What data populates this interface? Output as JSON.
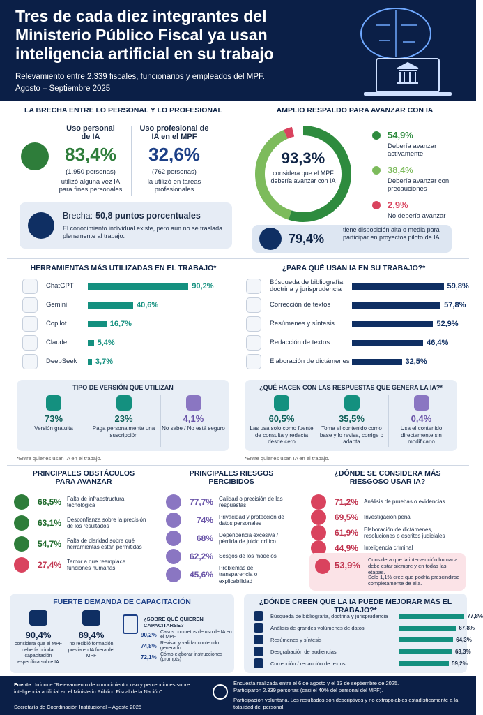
{
  "header": {
    "title": "Tres de cada diez integrantes del Ministerio Público Fiscal ya usan inteligencia artificial en su trabajo",
    "subtitle": "Relevamiento entre 2.339 fiscales, funcionarios y empleados del MPF.",
    "period": "Agosto – Septiembre 2025"
  },
  "gap": {
    "title": "LA BRECHA ENTRE LO PERSONAL Y LO PROFESIONAL",
    "personal": {
      "label": "Uso personal de IA",
      "value": "83,4%",
      "count": "(1.950 personas)",
      "note": "utilizó alguna vez IA para fines personales"
    },
    "professional": {
      "label": "Uso profesional de IA en el MPF",
      "value": "32,6%",
      "count": "(762 personas)",
      "note": "la utilizó en tareas profesionales"
    },
    "brecha": {
      "label": "Brecha:",
      "value": "50,8 puntos porcentuales",
      "note": "El conocimiento individual existe, pero aún no se traslada plenamente al trabajo."
    }
  },
  "support": {
    "title": "AMPLIO RESPALDO PARA AVANZAR CON IA",
    "center_value": "93,3%",
    "center_note": "considera que el MPF debería avanzar con IA",
    "segments": [
      {
        "value": 54.9,
        "label": "54,9%",
        "text": "Debería avanzar activamente",
        "color": "#2e8b3e"
      },
      {
        "value": 38.4,
        "label": "38,4%",
        "text": "Debería avanzar con precauciones",
        "color": "#7dbb5c"
      },
      {
        "value": 2.9,
        "label": "2,9%",
        "text": "No debería avanzar",
        "color": "#d9435e"
      }
    ],
    "pilot": {
      "value": "79,4%",
      "text": "tiene disposición alta o media para participar en proyectos piloto de IA."
    }
  },
  "tools": {
    "title": "HERRAMIENTAS MÁS UTILIZADAS EN EL TRABAJO*",
    "color": "#14907f",
    "items": [
      {
        "name": "ChatGPT",
        "value": 90.2,
        "label": "90,2%"
      },
      {
        "name": "Gemini",
        "value": 40.6,
        "label": "40,6%"
      },
      {
        "name": "Copilot",
        "value": 16.7,
        "label": "16,7%"
      },
      {
        "name": "Claude",
        "value": 5.4,
        "label": "5,4%"
      },
      {
        "name": "DeepSeek",
        "value": 3.7,
        "label": "3,7%"
      }
    ],
    "version": {
      "title": "TIPO DE VERSIÓN QUE UTILIZAN",
      "items": [
        {
          "value": "73%",
          "text": "Versión gratuita"
        },
        {
          "value": "23%",
          "text": "Paga personalmente una suscripción"
        },
        {
          "value": "4,1%",
          "text": "No sabe / No está seguro"
        }
      ]
    },
    "note": "*Entre quienes usan IA en el trabajo."
  },
  "uses": {
    "title": "¿PARA QUÉ USAN IA EN SU TRABAJO?*",
    "color": "#0f2f63",
    "items": [
      {
        "name": "Búsqueda de bibliografía, doctrina y jurisprudencia",
        "value": 59.8,
        "label": "59,8%"
      },
      {
        "name": "Corrección de textos",
        "value": 57.8,
        "label": "57,8%"
      },
      {
        "name": "Resúmenes y síntesis",
        "value": 52.9,
        "label": "52,9%"
      },
      {
        "name": "Redacción de textos",
        "value": 46.4,
        "label": "46,4%"
      },
      {
        "name": "Elaboración de dictámenes",
        "value": 32.5,
        "label": "32,5%"
      }
    ],
    "responses": {
      "title": "¿QUÉ HACEN CON LAS RESPUESTAS QUE GENERA LA IA?*",
      "items": [
        {
          "value": "60,5%",
          "text": "Las usa solo como fuente de consulta y redacta desde cero"
        },
        {
          "value": "35,5%",
          "text": "Toma el contenido como base y lo revisa, corrige o adapta"
        },
        {
          "value": "0,4%",
          "text": "Usa el contenido directamente sin modificarlo"
        }
      ]
    },
    "note": "*Entre quienes usan IA en el trabajo."
  },
  "obstacles": {
    "title": "PRINCIPALES OBSTÁCULOS PARA AVANZAR",
    "items": [
      {
        "value": "68,5%",
        "text": "Falta de infraestructura tecnológica"
      },
      {
        "value": "63,1%",
        "text": "Desconfianza sobre la precisión de los resultados"
      },
      {
        "value": "54,7%",
        "text": "Falta de claridad sobre qué herramientas están permitidas"
      },
      {
        "value": "27,4%",
        "text": "Temor a que reemplace funciones humanas"
      }
    ]
  },
  "risks": {
    "title": "PRINCIPALES RIESGOS PERCIBIDOS",
    "items": [
      {
        "value": "77,7%",
        "text": "Calidad o precisión de las respuestas"
      },
      {
        "value": "74%",
        "text": "Privacidad y protección de datos personales"
      },
      {
        "value": "68%",
        "text": "Dependencia excesiva / pérdida de juicio crítico"
      },
      {
        "value": "62,2%",
        "text": "Sesgos de los modelos"
      },
      {
        "value": "45,6%",
        "text": "Problemas de transparencia o explicabilidad"
      }
    ]
  },
  "risk_areas": {
    "title": "¿DÓNDE SE CONSIDERA MÁS RIESGOSO USAR IA?",
    "items": [
      {
        "value": "71,2%",
        "text": "Análisis de pruebas o evidencias"
      },
      {
        "value": "69,5%",
        "text": "Investigación penal"
      },
      {
        "value": "61,9%",
        "text": "Elaboración de dictámenes, resoluciones o escritos judiciales"
      },
      {
        "value": "44,9%",
        "text": "Inteligencia criminal"
      }
    ],
    "human": {
      "value": "53,9%",
      "text": "Considera que la intervención humana debe estar siempre y en todas las etapas.",
      "note": "Solo 1,1% cree que podría prescindirse completamente de ella."
    }
  },
  "training": {
    "title": "FUERTE DEMANDA DE CAPACITACIÓN",
    "stats": [
      {
        "value": "90,4%",
        "text": "considera que el MPF debería brindar capacitación específica sobre IA"
      },
      {
        "value": "89,4%",
        "text": "no recibió formación previa en IA fuera del MPF"
      }
    ],
    "topics_title": "¿SOBRE QUÉ QUIEREN CAPACITARSE?",
    "topics": [
      {
        "value": "90,2%",
        "text": "Casos concretos de uso de IA en el MPF"
      },
      {
        "value": "74,8%",
        "text": "Revisar y validar contenido generado"
      },
      {
        "value": "72,1%",
        "text": "Cómo elaborar instrucciones (prompts)"
      }
    ]
  },
  "improve": {
    "title": "¿DÓNDE CREEN QUE LA IA PUEDE MEJORAR MÁS EL TRABAJO?*",
    "color": "#14907f",
    "items": [
      {
        "name": "Búsqueda de bibliografía, doctrina y jurisprudencia",
        "value": 77.8,
        "label": "77,8%"
      },
      {
        "name": "Análisis de grandes volúmenes de datos",
        "value": 67.8,
        "label": "67,8%"
      },
      {
        "name": "Resúmenes y síntesis",
        "value": 64.3,
        "label": "64,3%"
      },
      {
        "name": "Desgrabación de audiencias",
        "value": 63.3,
        "label": "63,3%"
      },
      {
        "name": "Corrección / redacción de textos",
        "value": 59.2,
        "label": "59,2%"
      }
    ]
  },
  "footer": {
    "source_label": "Fuente:",
    "source": "Informe “Relevamiento de conocimiento, uso y percepciones sobre inteligencia artificial en el Ministerio Público Fiscal de la Nación”.",
    "secretariat": "Secretaría de Coordinación Institucional – Agosto 2025",
    "survey": "Encuesta realizada entre el 6 de agosto y el 13 de septiembre de 2025.",
    "participants": "Participaron 2.339 personas (casi el 40% del personal del MPF).",
    "disclaimer": "Participación voluntaria. Los resultados son descriptivos y no extrapolables estadísticamente a la totalidad del personal."
  }
}
